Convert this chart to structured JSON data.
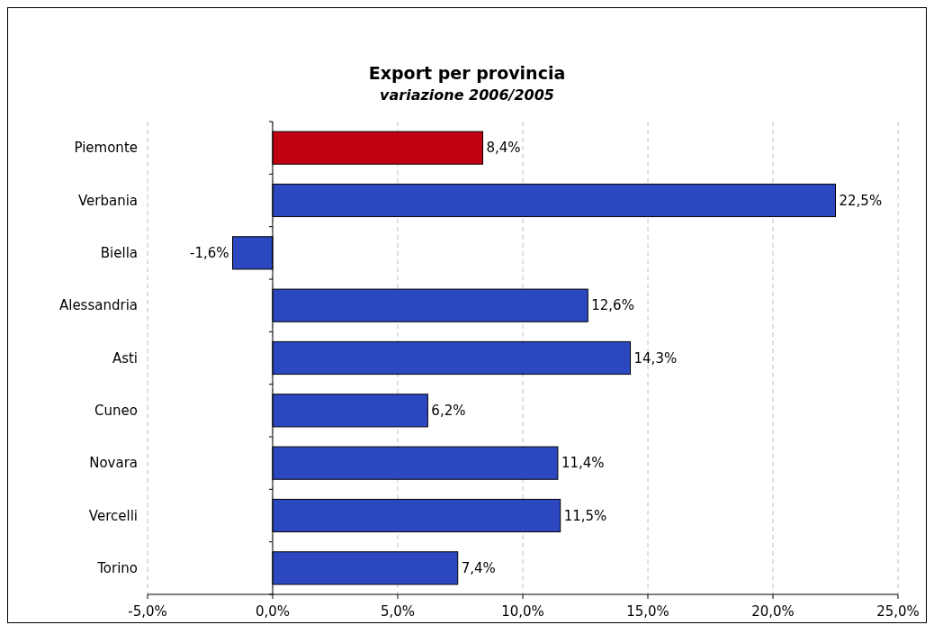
{
  "chart_data": {
    "type": "bar",
    "orientation": "horizontal",
    "title": "Export per provincia",
    "subtitle": "variazione 2006/2005",
    "categories": [
      "Piemonte",
      "Verbania",
      "Biella",
      "Alessandria",
      "Asti",
      "Cuneo",
      "Novara",
      "Vercelli",
      "Torino"
    ],
    "values": [
      8.4,
      22.5,
      -1.6,
      12.6,
      14.3,
      6.2,
      11.4,
      11.5,
      7.4
    ],
    "value_labels": [
      "8,4%",
      "22,5%",
      "-1,6%",
      "12,6%",
      "14,3%",
      "6,2%",
      "11,4%",
      "11,5%",
      "7,4%"
    ],
    "colors": [
      "#c00010",
      "#2b48c0",
      "#2b48c0",
      "#2b48c0",
      "#2b48c0",
      "#2b48c0",
      "#2b48c0",
      "#2b48c0",
      "#2b48c0"
    ],
    "xlim": [
      -5,
      25
    ],
    "xticks": [
      {
        "value": -5,
        "label": "-5,0%"
      },
      {
        "value": 0,
        "label": "0,0%"
      },
      {
        "value": 5,
        "label": "5,0%"
      },
      {
        "value": 10,
        "label": "10,0%"
      },
      {
        "value": 15,
        "label": "15,0%"
      },
      {
        "value": 20,
        "label": "20,0%"
      },
      {
        "value": 25,
        "label": "25,0%"
      }
    ],
    "grid": "x"
  }
}
